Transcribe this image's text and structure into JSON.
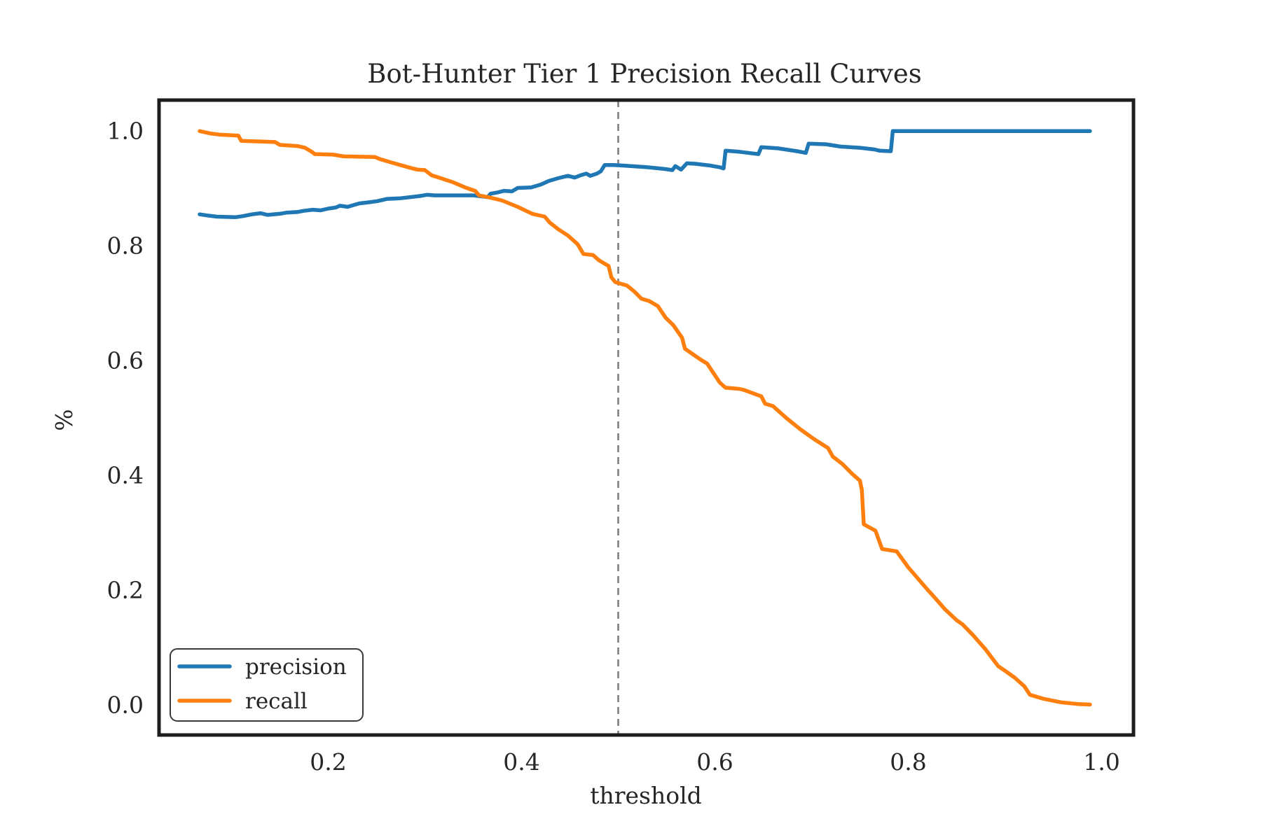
{
  "colors": {
    "background": "#ffffff",
    "spine": "#1c1c1c",
    "text": "#262626",
    "precision": "#1f77b4",
    "recall": "#ff7f0e",
    "vline": "#808080"
  },
  "chart_data": {
    "type": "line",
    "title": "Bot-Hunter Tier 1 Precision Recall Curves",
    "xlabel": "threshold",
    "ylabel": "%",
    "xlim": [
      0.025,
      1.033
    ],
    "ylim": [
      -0.052,
      1.054
    ],
    "xticks": [
      0.2,
      0.4,
      0.6,
      0.8,
      1.0
    ],
    "yticks": [
      0.0,
      0.2,
      0.4,
      0.6,
      0.8,
      1.0
    ],
    "grid": false,
    "legend_position": "lower left",
    "vline": {
      "x": 0.5,
      "style": "dashed",
      "color": "#808080"
    },
    "series": [
      {
        "name": "precision",
        "color": "#1f77b4",
        "points": [
          [
            0.067,
            0.855
          ],
          [
            0.075,
            0.853
          ],
          [
            0.085,
            0.851
          ],
          [
            0.104,
            0.85
          ],
          [
            0.112,
            0.852
          ],
          [
            0.121,
            0.855
          ],
          [
            0.13,
            0.857
          ],
          [
            0.137,
            0.854
          ],
          [
            0.15,
            0.856
          ],
          [
            0.157,
            0.858
          ],
          [
            0.168,
            0.859
          ],
          [
            0.174,
            0.861
          ],
          [
            0.184,
            0.863
          ],
          [
            0.192,
            0.862
          ],
          [
            0.2,
            0.865
          ],
          [
            0.208,
            0.867
          ],
          [
            0.212,
            0.87
          ],
          [
            0.22,
            0.868
          ],
          [
            0.232,
            0.874
          ],
          [
            0.242,
            0.876
          ],
          [
            0.251,
            0.878
          ],
          [
            0.261,
            0.882
          ],
          [
            0.275,
            0.883
          ],
          [
            0.295,
            0.887
          ],
          [
            0.302,
            0.889
          ],
          [
            0.31,
            0.888
          ],
          [
            0.33,
            0.888
          ],
          [
            0.35,
            0.888
          ],
          [
            0.36,
            0.886
          ],
          [
            0.365,
            0.885
          ],
          [
            0.368,
            0.891
          ],
          [
            0.375,
            0.893
          ],
          [
            0.382,
            0.896
          ],
          [
            0.39,
            0.895
          ],
          [
            0.396,
            0.901
          ],
          [
            0.41,
            0.902
          ],
          [
            0.42,
            0.907
          ],
          [
            0.428,
            0.913
          ],
          [
            0.438,
            0.918
          ],
          [
            0.448,
            0.922
          ],
          [
            0.455,
            0.919
          ],
          [
            0.461,
            0.923
          ],
          [
            0.467,
            0.926
          ],
          [
            0.471,
            0.922
          ],
          [
            0.478,
            0.926
          ],
          [
            0.482,
            0.93
          ],
          [
            0.486,
            0.941
          ],
          [
            0.495,
            0.941
          ],
          [
            0.505,
            0.94
          ],
          [
            0.53,
            0.937
          ],
          [
            0.548,
            0.934
          ],
          [
            0.556,
            0.932
          ],
          [
            0.559,
            0.939
          ],
          [
            0.565,
            0.933
          ],
          [
            0.571,
            0.944
          ],
          [
            0.58,
            0.943
          ],
          [
            0.595,
            0.94
          ],
          [
            0.605,
            0.937
          ],
          [
            0.609,
            0.935
          ],
          [
            0.611,
            0.966
          ],
          [
            0.625,
            0.964
          ],
          [
            0.64,
            0.961
          ],
          [
            0.645,
            0.96
          ],
          [
            0.648,
            0.972
          ],
          [
            0.665,
            0.97
          ],
          [
            0.685,
            0.965
          ],
          [
            0.694,
            0.962
          ],
          [
            0.697,
            0.978
          ],
          [
            0.715,
            0.977
          ],
          [
            0.73,
            0.973
          ],
          [
            0.75,
            0.971
          ],
          [
            0.765,
            0.968
          ],
          [
            0.77,
            0.966
          ],
          [
            0.782,
            0.965
          ],
          [
            0.784,
            1.0
          ],
          [
            0.82,
            1.0
          ],
          [
            0.87,
            1.0
          ],
          [
            0.93,
            1.0
          ],
          [
            0.988,
            1.0
          ]
        ]
      },
      {
        "name": "recall",
        "color": "#ff7f0e",
        "points": [
          [
            0.067,
            1.0
          ],
          [
            0.078,
            0.996
          ],
          [
            0.087,
            0.994
          ],
          [
            0.107,
            0.992
          ],
          [
            0.11,
            0.983
          ],
          [
            0.145,
            0.981
          ],
          [
            0.15,
            0.976
          ],
          [
            0.168,
            0.974
          ],
          [
            0.176,
            0.971
          ],
          [
            0.183,
            0.964
          ],
          [
            0.186,
            0.96
          ],
          [
            0.205,
            0.959
          ],
          [
            0.212,
            0.957
          ],
          [
            0.216,
            0.956
          ],
          [
            0.248,
            0.955
          ],
          [
            0.254,
            0.951
          ],
          [
            0.266,
            0.945
          ],
          [
            0.285,
            0.936
          ],
          [
            0.292,
            0.933
          ],
          [
            0.3,
            0.932
          ],
          [
            0.307,
            0.923
          ],
          [
            0.318,
            0.917
          ],
          [
            0.329,
            0.911
          ],
          [
            0.343,
            0.901
          ],
          [
            0.352,
            0.896
          ],
          [
            0.356,
            0.888
          ],
          [
            0.368,
            0.884
          ],
          [
            0.38,
            0.879
          ],
          [
            0.396,
            0.868
          ],
          [
            0.411,
            0.856
          ],
          [
            0.424,
            0.851
          ],
          [
            0.429,
            0.841
          ],
          [
            0.438,
            0.829
          ],
          [
            0.448,
            0.818
          ],
          [
            0.458,
            0.803
          ],
          [
            0.464,
            0.786
          ],
          [
            0.474,
            0.784
          ],
          [
            0.48,
            0.775
          ],
          [
            0.49,
            0.765
          ],
          [
            0.493,
            0.745
          ],
          [
            0.497,
            0.737
          ],
          [
            0.509,
            0.731
          ],
          [
            0.517,
            0.72
          ],
          [
            0.524,
            0.708
          ],
          [
            0.532,
            0.704
          ],
          [
            0.541,
            0.695
          ],
          [
            0.549,
            0.675
          ],
          [
            0.557,
            0.662
          ],
          [
            0.566,
            0.64
          ],
          [
            0.569,
            0.621
          ],
          [
            0.58,
            0.608
          ],
          [
            0.587,
            0.6
          ],
          [
            0.592,
            0.595
          ],
          [
            0.605,
            0.562
          ],
          [
            0.611,
            0.553
          ],
          [
            0.625,
            0.551
          ],
          [
            0.63,
            0.549
          ],
          [
            0.648,
            0.538
          ],
          [
            0.652,
            0.525
          ],
          [
            0.66,
            0.521
          ],
          [
            0.674,
            0.5
          ],
          [
            0.688,
            0.481
          ],
          [
            0.703,
            0.463
          ],
          [
            0.717,
            0.448
          ],
          [
            0.722,
            0.433
          ],
          [
            0.732,
            0.42
          ],
          [
            0.742,
            0.403
          ],
          [
            0.75,
            0.391
          ],
          [
            0.752,
            0.375
          ],
          [
            0.754,
            0.315
          ],
          [
            0.766,
            0.304
          ],
          [
            0.773,
            0.272
          ],
          [
            0.788,
            0.268
          ],
          [
            0.8,
            0.24
          ],
          [
            0.82,
            0.201
          ],
          [
            0.826,
            0.19
          ],
          [
            0.838,
            0.167
          ],
          [
            0.85,
            0.148
          ],
          [
            0.856,
            0.141
          ],
          [
            0.867,
            0.122
          ],
          [
            0.88,
            0.097
          ],
          [
            0.893,
            0.068
          ],
          [
            0.9,
            0.06
          ],
          [
            0.91,
            0.048
          ],
          [
            0.92,
            0.033
          ],
          [
            0.926,
            0.018
          ],
          [
            0.94,
            0.011
          ],
          [
            0.958,
            0.005
          ],
          [
            0.975,
            0.002
          ],
          [
            0.988,
            0.001
          ]
        ]
      }
    ]
  },
  "legend": {
    "entries": [
      {
        "label": "precision"
      },
      {
        "label": "recall"
      }
    ]
  }
}
